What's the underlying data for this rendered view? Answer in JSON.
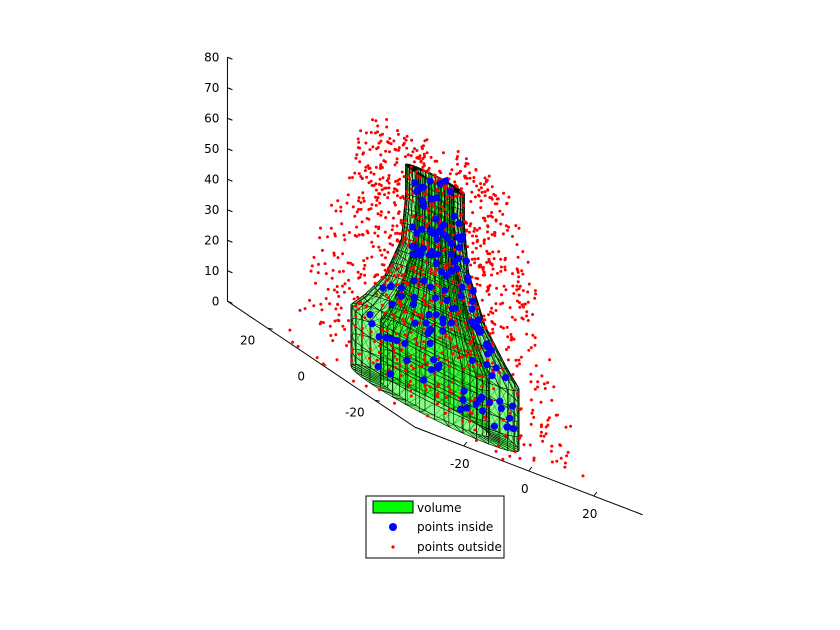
{
  "chart_data": {
    "type": "scatter",
    "subtype": "3d-mesh-with-point-cloud",
    "title": "",
    "xlabel": "",
    "ylabel": "",
    "zlabel": "",
    "grid": false,
    "axes": {
      "x": {
        "range": [
          -35,
          35
        ],
        "ticks": [
          -20,
          0,
          20
        ],
        "tick_labels": [
          "-20",
          "0",
          "20"
        ]
      },
      "y": {
        "range": [
          -35,
          35
        ],
        "ticks": [
          -20,
          0,
          20
        ],
        "tick_labels": [
          "-20",
          "0",
          "20"
        ]
      },
      "z": {
        "range": [
          0,
          80
        ],
        "ticks": [
          0,
          10,
          20,
          30,
          40,
          50,
          60,
          70,
          80
        ],
        "tick_labels": [
          "0",
          "10",
          "20",
          "30",
          "40",
          "50",
          "60",
          "70",
          "80"
        ]
      }
    },
    "volume": {
      "name": "volume",
      "color": "#00ff00",
      "edge_color": "#000000",
      "outer_profile": [
        [
          0,
          20
        ],
        [
          10,
          20
        ],
        [
          20,
          20
        ],
        [
          25,
          17
        ],
        [
          35,
          12
        ],
        [
          50,
          8
        ],
        [
          65,
          7
        ],
        [
          75,
          7
        ]
      ],
      "inner_profile": [
        [
          0,
          13
        ],
        [
          10,
          13
        ],
        [
          20,
          13
        ],
        [
          25,
          11
        ],
        [
          35,
          8
        ],
        [
          50,
          5
        ],
        [
          65,
          4.5
        ],
        [
          75,
          4.5
        ]
      ]
    },
    "series": [
      {
        "name": "points inside",
        "marker": "filled-circle",
        "color": "#0000ff",
        "count": 140
      },
      {
        "name": "points outside",
        "marker": "dot",
        "color": "#ff0000",
        "count": 1100
      }
    ],
    "legend": {
      "placement": "bottom-center",
      "entries": [
        {
          "label": "volume",
          "symbol": "patch",
          "color": "#00ff00"
        },
        {
          "label": "points inside",
          "symbol": "filled-circle",
          "color": "#0000ff"
        },
        {
          "label": "points outside",
          "symbol": "dot",
          "color": "#ff0000"
        }
      ]
    }
  }
}
